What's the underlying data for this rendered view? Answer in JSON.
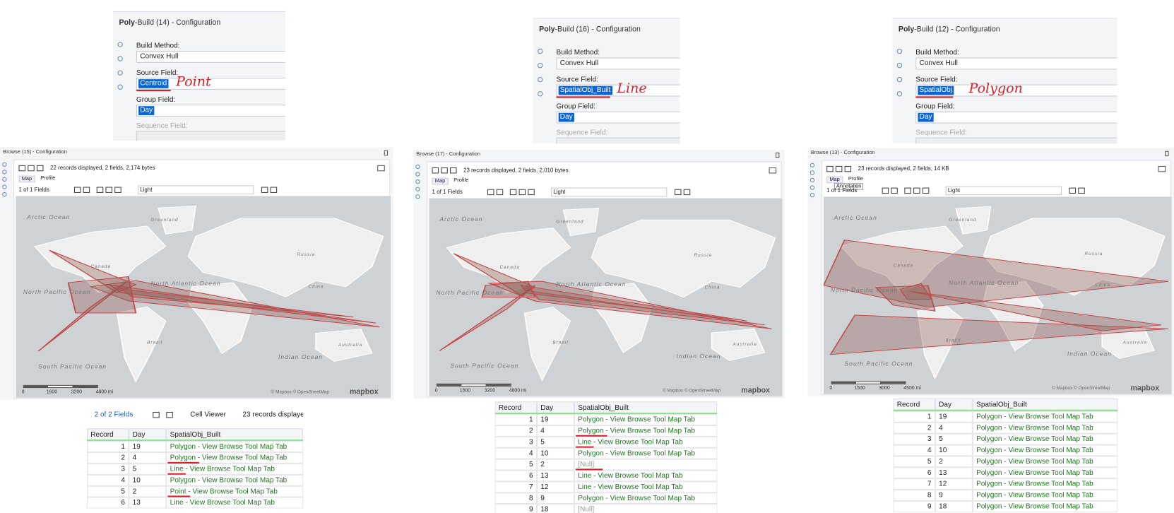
{
  "map_labels": [
    "Arctic Ocean",
    "Greenland",
    "Canada",
    "Russia",
    "North Pacific Ocean",
    "North Atlantic Ocean",
    "China",
    "Brazil",
    "South Pacific Ocean",
    "Indian Ocean",
    "Australia"
  ],
  "panels": [
    {
      "config": {
        "title_bold": "Poly",
        "title": "-Build (14) - Configuration",
        "build_method_label": "Build Method:",
        "build_method": "Convex Hull",
        "source_field_label": "Source Field:",
        "source_field": "Centroid",
        "annotation": "Point",
        "group_field_label": "Group Field:",
        "group_field": "Day",
        "sequence_field_label": "Sequence Field:"
      },
      "browse": {
        "title": "Browse (15)",
        "title_suffix": " - Configuration",
        "status": "22 records displayed, 2 fields, 2,174 bytes",
        "tabs": [
          "Map",
          "Profile"
        ],
        "fields": "1 of 1 Fields",
        "style": "Light",
        "scale": [
          "0",
          "1600",
          "3200",
          "4800 mi"
        ],
        "attribution": "© Mapbox © OpenStreetMap",
        "logo": "mapbox"
      },
      "table": {
        "toolbar": {
          "fields": "2 of 2 Fields",
          "viewer": "Cell Viewer",
          "status": "23 records displaye"
        },
        "columns": [
          "Record",
          "Day",
          "SpatialObj_Built"
        ],
        "rows": [
          [
            1,
            19,
            "Polygon - View Browse Tool Map Tab"
          ],
          [
            2,
            4,
            "Polygon - View Browse Tool Map Tab"
          ],
          [
            3,
            5,
            "Line - View Browse Tool Map Tab"
          ],
          [
            4,
            10,
            "Polygon - View Browse Tool Map Tab"
          ],
          [
            5,
            2,
            "Point - View Browse Tool Map Tab"
          ],
          [
            6,
            13,
            "Line - View Browse Tool Map Tab"
          ]
        ]
      }
    },
    {
      "config": {
        "title_bold": "Poly",
        "title": "-Build (16) - Configuration",
        "build_method_label": "Build Method:",
        "build_method": "Convex Hull",
        "source_field_label": "Source Field:",
        "source_field": "SpatialObj_Built",
        "annotation": "Line",
        "group_field_label": "Group Field:",
        "group_field": "Day",
        "sequence_field_label": "Sequence Field:"
      },
      "browse": {
        "title": "Browse (17)",
        "title_suffix": " - Configuration",
        "status": "23 records displayed, 2 fields, 2,010 bytes",
        "tabs": [
          "Map",
          "Profile"
        ],
        "fields": "1 of 1 Fields",
        "style": "Light",
        "scale": [
          "0",
          "1600",
          "3200",
          "4800 mi"
        ],
        "attribution": "© Mapbox © OpenStreetMap",
        "logo": "mapbox"
      },
      "table": {
        "columns": [
          "Record",
          "Day",
          "SpatialObj_Built"
        ],
        "rows": [
          [
            1,
            19,
            "Polygon - View Browse Tool Map Tab"
          ],
          [
            2,
            4,
            "Polygon - View Browse Tool Map Tab"
          ],
          [
            3,
            5,
            "Line - View Browse Tool Map Tab"
          ],
          [
            4,
            10,
            "Polygon - View Browse Tool Map Tab"
          ],
          [
            5,
            2,
            "[Null]"
          ],
          [
            6,
            13,
            "Line - View Browse Tool Map Tab"
          ],
          [
            7,
            12,
            "Line - View Browse Tool Map Tab"
          ],
          [
            8,
            9,
            "Polygon - View Browse Tool Map Tab"
          ],
          [
            9,
            18,
            "[Null]"
          ]
        ]
      }
    },
    {
      "config": {
        "title_bold": "Poly",
        "title": "-Build (12) - Configuration",
        "build_method_label": "Build Method:",
        "build_method": "Convex Hull",
        "source_field_label": "Source Field:",
        "source_field": "SpatialObj",
        "annotation": "Polygon",
        "group_field_label": "Group Field:",
        "group_field": "Day",
        "sequence_field_label": "Sequence Field:"
      },
      "browse": {
        "title": "Browse (13)",
        "title_suffix": " - Configuration",
        "status": "23 records displayed, 2 fields, 14 KB",
        "tabs": [
          "Map",
          "Profile"
        ],
        "tooltip": "Annotation",
        "fields": "1 of 1 Fields",
        "style": "Light",
        "scale": [
          "0",
          "1500",
          "3000",
          "4500 mi"
        ],
        "attribution": "© Mapbox © OpenStreetMap",
        "logo": "mapbox"
      },
      "table": {
        "columns": [
          "Record",
          "Day",
          "SpatialObj_Built"
        ],
        "rows": [
          [
            1,
            19,
            "Polygon - View Browse Tool Map Tab"
          ],
          [
            2,
            4,
            "Polygon - View Browse Tool Map Tab"
          ],
          [
            3,
            5,
            "Polygon - View Browse Tool Map Tab"
          ],
          [
            4,
            10,
            "Polygon - View Browse Tool Map Tab"
          ],
          [
            5,
            2,
            "Polygon - View Browse Tool Map Tab"
          ],
          [
            6,
            13,
            "Polygon - View Browse Tool Map Tab"
          ],
          [
            7,
            12,
            "Polygon - View Browse Tool Map Tab"
          ],
          [
            8,
            9,
            "Polygon - View Browse Tool Map Tab"
          ],
          [
            9,
            18,
            "Polygon - View Browse Tool Map Tab"
          ]
        ]
      }
    }
  ]
}
